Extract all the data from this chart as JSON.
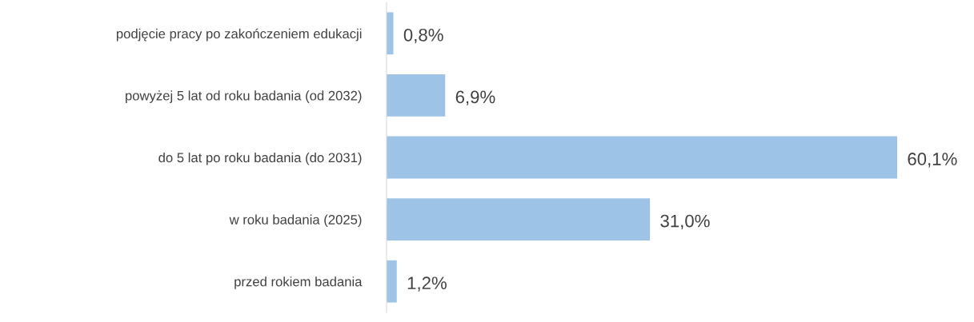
{
  "chart_data": {
    "type": "bar",
    "orientation": "horizontal",
    "categories": [
      "podjęcie pracy po zakończeniem edukacji",
      "powyżej 5 lat od roku badania (od 2032)",
      "do 5 lat po roku badania (do 2031)",
      "w roku badania (2025)",
      "przed rokiem badania"
    ],
    "values": [
      0.8,
      6.9,
      60.1,
      31.0,
      1.2
    ],
    "value_labels": [
      "0,8%",
      "6,9%",
      "60,1%",
      "31,0%",
      "1,2%"
    ],
    "color": "#9dc3e6",
    "grid": false,
    "legend": false
  }
}
